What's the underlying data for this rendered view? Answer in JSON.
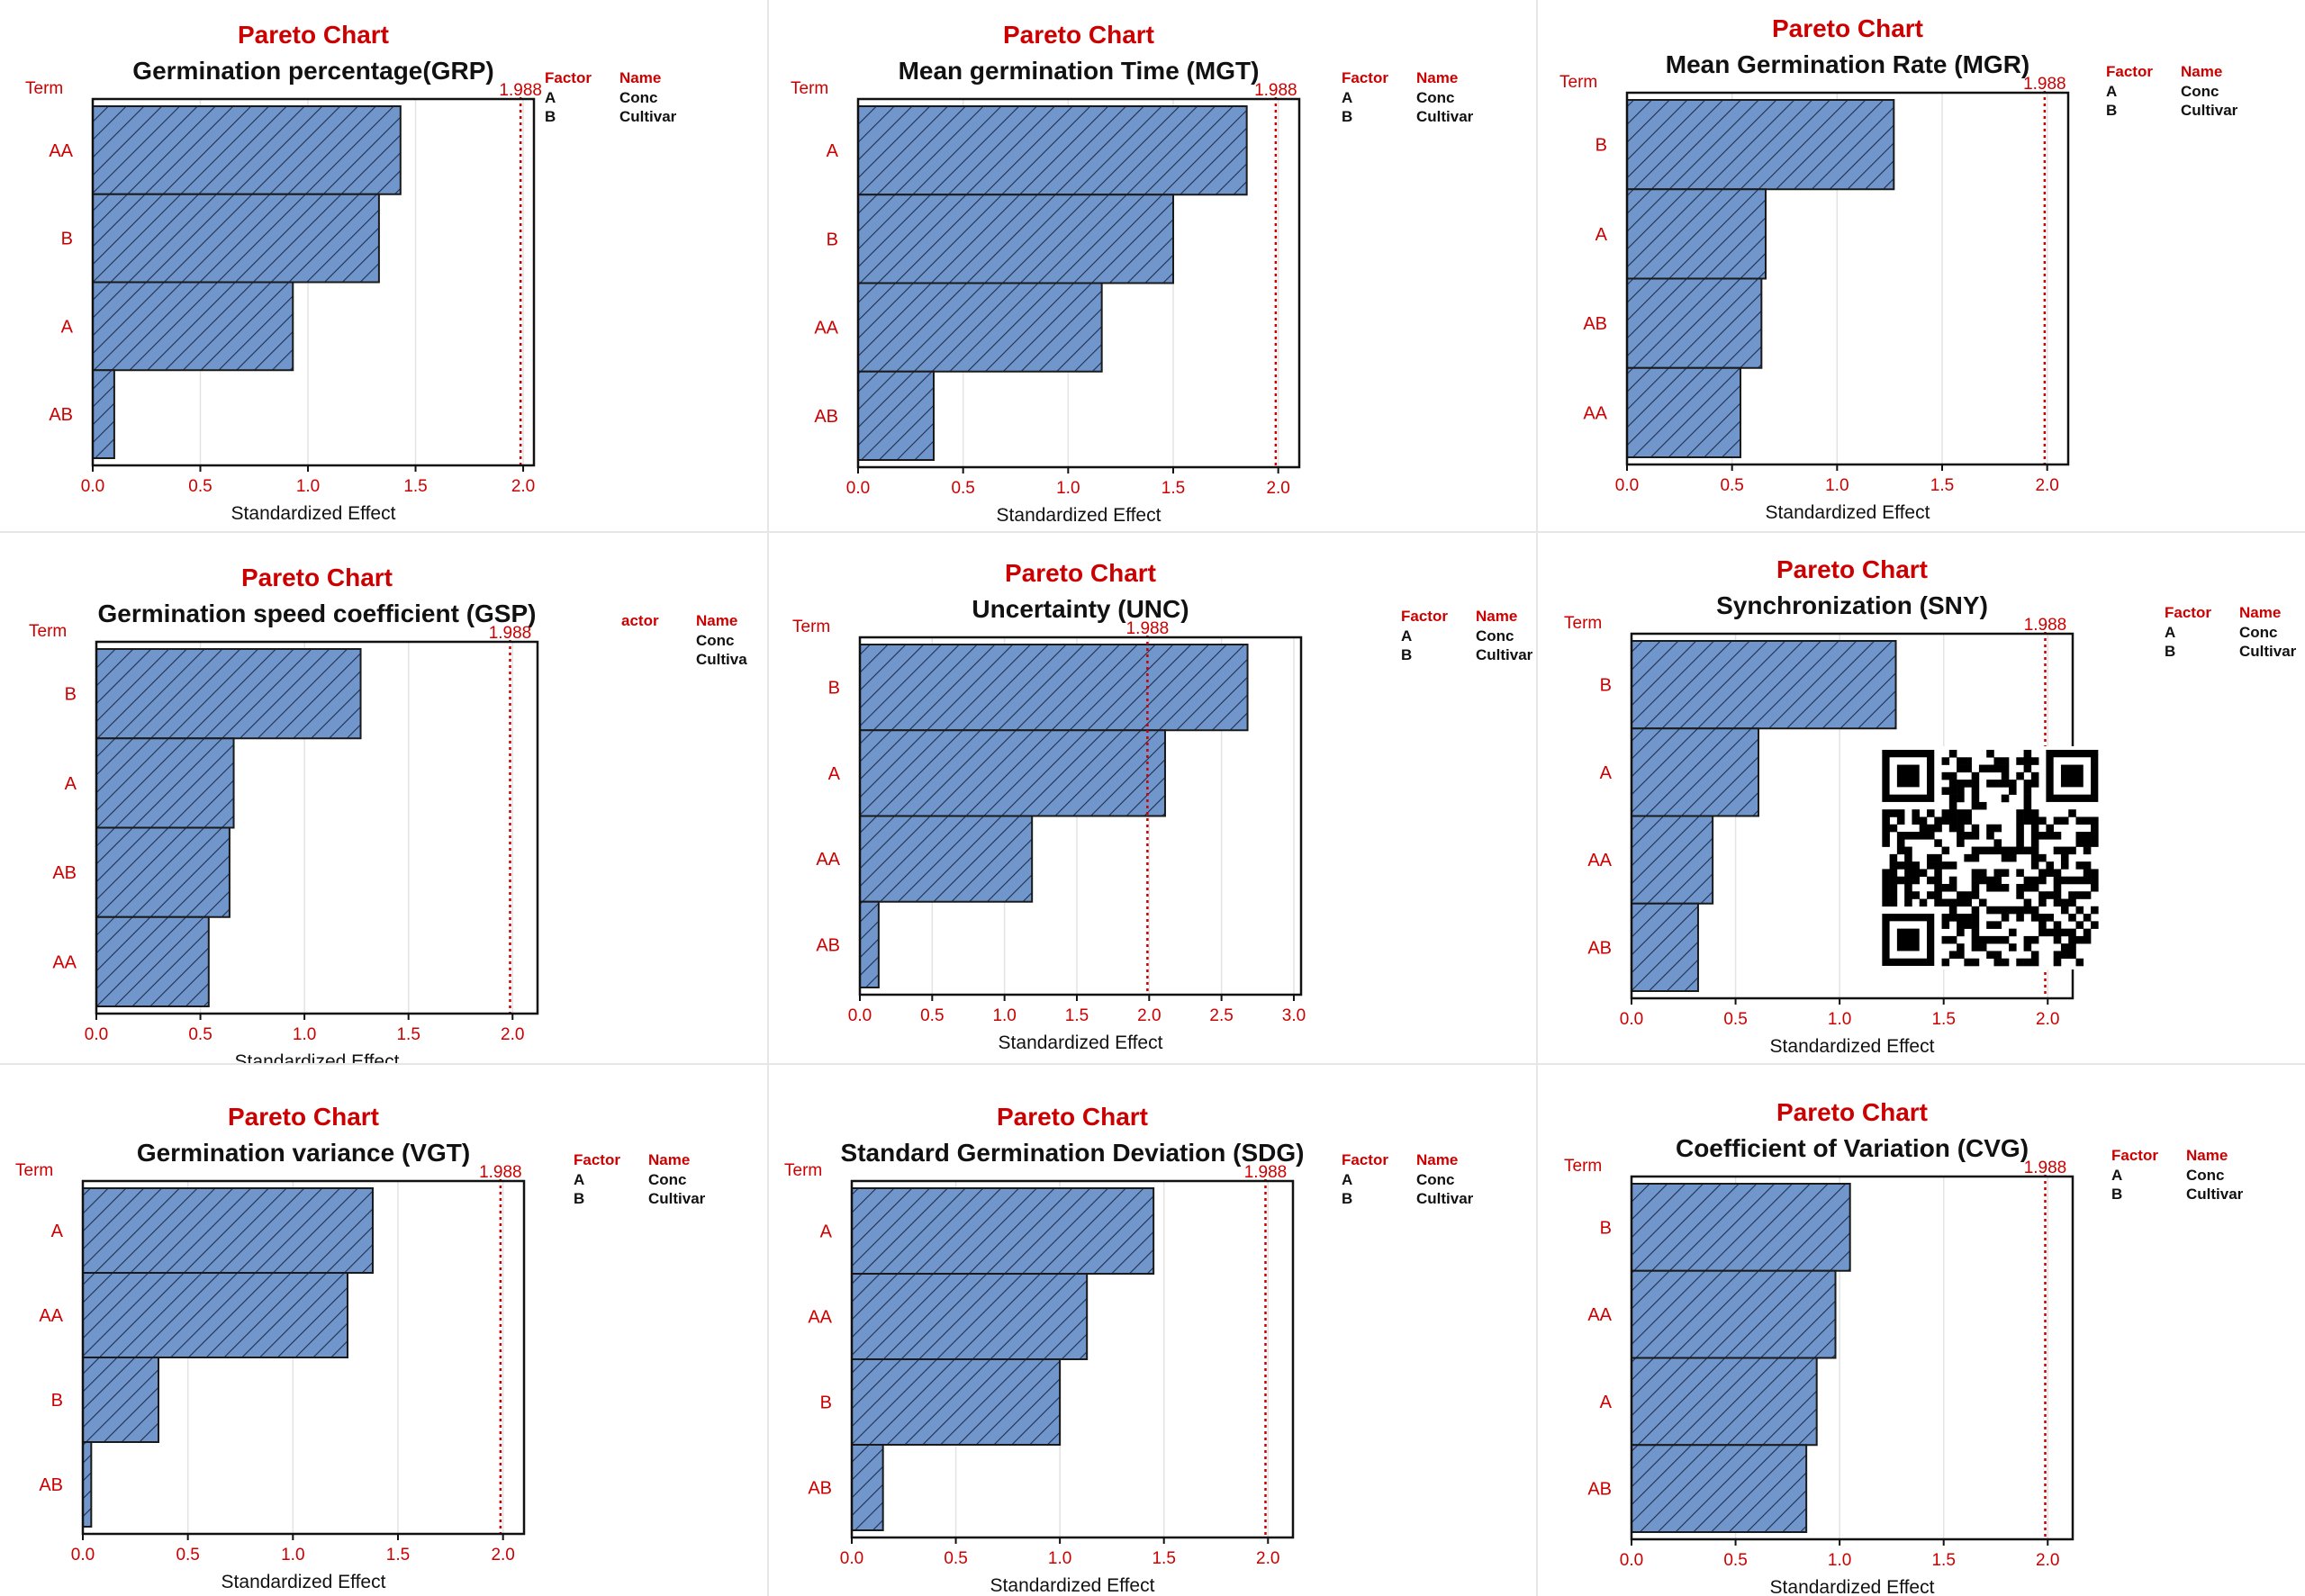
{
  "chart_data": [
    {
      "type": "bar",
      "orientation": "horizontal",
      "heading": "Pareto Chart",
      "title": "Germination percentage(GRP)",
      "ylabel": "Term",
      "xlabel": "Standardized Effect",
      "reference_line": {
        "value": 1.988,
        "label": "1.988"
      },
      "xlim": [
        0,
        2.05
      ],
      "xticks": [
        "0.0",
        "0.5",
        "1.0",
        "1.5",
        "2.0"
      ],
      "categories": [
        "AA",
        "B",
        "A",
        "AB"
      ],
      "values": [
        1.43,
        1.33,
        0.93,
        0.1
      ],
      "legend": {
        "headers": [
          "Factor",
          "Name"
        ],
        "rows": [
          [
            "A",
            "Conc"
          ],
          [
            "B",
            "Cultivar"
          ]
        ]
      }
    },
    {
      "type": "bar",
      "orientation": "horizontal",
      "heading": "Pareto Chart",
      "title": "Mean germination Time (MGT)",
      "ylabel": "Term",
      "xlabel": "Standardized Effect",
      "reference_line": {
        "value": 1.988,
        "label": "1.988"
      },
      "xlim": [
        0,
        2.1
      ],
      "xticks": [
        "0.0",
        "0.5",
        "1.0",
        "1.5",
        "2.0"
      ],
      "categories": [
        "A",
        "B",
        "AA",
        "AB"
      ],
      "values": [
        1.85,
        1.5,
        1.16,
        0.36
      ],
      "legend": {
        "headers": [
          "Factor",
          "Name"
        ],
        "rows": [
          [
            "A",
            "Conc"
          ],
          [
            "B",
            "Cultivar"
          ]
        ]
      }
    },
    {
      "type": "bar",
      "orientation": "horizontal",
      "heading": "Pareto Chart",
      "title": "Mean Germination Rate (MGR)",
      "ylabel": "Term",
      "xlabel": "Standardized Effect",
      "reference_line": {
        "value": 1.988,
        "label": "1.988"
      },
      "xlim": [
        0,
        2.1
      ],
      "xticks": [
        "0.0",
        "0.5",
        "1.0",
        "1.5",
        "2.0"
      ],
      "categories": [
        "B",
        "A",
        "AB",
        "AA"
      ],
      "values": [
        1.27,
        0.66,
        0.64,
        0.54
      ],
      "legend": {
        "headers": [
          "Factor",
          "Name"
        ],
        "rows": [
          [
            "A",
            "Conc"
          ],
          [
            "B",
            "Cultivar"
          ]
        ]
      }
    },
    {
      "type": "bar",
      "orientation": "horizontal",
      "heading": "Pareto Chart",
      "title": "Germination speed coefficient (GSP)",
      "ylabel": "Term",
      "xlabel": "Standardized Effect",
      "reference_line": {
        "value": 1.988,
        "label": "1.988"
      },
      "xlim": [
        0,
        2.12
      ],
      "xticks": [
        "0.0",
        "0.5",
        "1.0",
        "1.5",
        "2.0"
      ],
      "categories": [
        "B",
        "A",
        "AB",
        "AA"
      ],
      "values": [
        1.27,
        0.66,
        0.64,
        0.54
      ],
      "legend": {
        "headers": [
          "actor",
          "Name"
        ],
        "rows": [
          [
            "",
            "Conc"
          ],
          [
            "",
            "Cultiva"
          ]
        ]
      }
    },
    {
      "type": "bar",
      "orientation": "horizontal",
      "heading": "Pareto Chart",
      "title": "Uncertainty (UNC)",
      "ylabel": "Term",
      "xlabel": "Standardized Effect",
      "reference_line": {
        "value": 1.988,
        "label": "1.988"
      },
      "xlim": [
        0,
        3.05
      ],
      "xticks": [
        "0.0",
        "0.5",
        "1.0",
        "1.5",
        "2.0",
        "2.5",
        "3.0"
      ],
      "categories": [
        "B",
        "A",
        "AA",
        "AB"
      ],
      "values": [
        2.68,
        2.11,
        1.19,
        0.13
      ],
      "legend": {
        "headers": [
          "Factor",
          "Name"
        ],
        "rows": [
          [
            "A",
            "Conc"
          ],
          [
            "B",
            "Cultivar"
          ]
        ]
      }
    },
    {
      "type": "bar",
      "orientation": "horizontal",
      "heading": "Pareto Chart",
      "title": "Synchronization (SNY)",
      "ylabel": "Term",
      "xlabel": "Standardized Effect",
      "reference_line": {
        "value": 1.988,
        "label": "1.988"
      },
      "xlim": [
        0,
        2.12
      ],
      "xticks": [
        "0.0",
        "0.5",
        "1.0",
        "1.5",
        "2.0"
      ],
      "categories": [
        "B",
        "A",
        "AA",
        "AB"
      ],
      "values": [
        1.27,
        0.61,
        0.39,
        0.32
      ],
      "legend": {
        "headers": [
          "Factor",
          "Name"
        ],
        "rows": [
          [
            "A",
            "Conc"
          ],
          [
            "B",
            "Cultivar"
          ]
        ]
      }
    },
    {
      "type": "bar",
      "orientation": "horizontal",
      "heading": "Pareto Chart",
      "title": "Germination variance (VGT)",
      "ylabel": "Term",
      "xlabel": "Standardized Effect",
      "reference_line": {
        "value": 1.988,
        "label": "1.988"
      },
      "xlim": [
        0,
        2.1
      ],
      "xticks": [
        "0.0",
        "0.5",
        "1.0",
        "1.5",
        "2.0"
      ],
      "categories": [
        "A",
        "AA",
        "B",
        "AB"
      ],
      "values": [
        1.38,
        1.26,
        0.36,
        0.04
      ],
      "legend": {
        "headers": [
          "Factor",
          "Name"
        ],
        "rows": [
          [
            "A",
            "Conc"
          ],
          [
            "B",
            "Cultivar"
          ]
        ]
      }
    },
    {
      "type": "bar",
      "orientation": "horizontal",
      "heading": "Pareto Chart",
      "title": "Standard Germination Deviation (SDG)",
      "ylabel": "Term",
      "xlabel": "Standardized Effect",
      "reference_line": {
        "value": 1.988,
        "label": "1.988"
      },
      "xlim": [
        0,
        2.12
      ],
      "xticks": [
        "0.0",
        "0.5",
        "1.0",
        "1.5",
        "2.0"
      ],
      "categories": [
        "A",
        "AA",
        "B",
        "AB"
      ],
      "values": [
        1.45,
        1.13,
        1.0,
        0.15
      ],
      "legend": {
        "headers": [
          "Factor",
          "Name"
        ],
        "rows": [
          [
            "A",
            "Conc"
          ],
          [
            "B",
            "Cultivar"
          ]
        ]
      }
    },
    {
      "type": "bar",
      "orientation": "horizontal",
      "heading": "Pareto Chart",
      "title": "Coefficient of Variation (CVG)",
      "ylabel": "Term",
      "xlabel": "Standardized Effect",
      "reference_line": {
        "value": 1.988,
        "label": "1.988"
      },
      "xlim": [
        0,
        2.12
      ],
      "xticks": [
        "0.0",
        "0.5",
        "1.0",
        "1.5",
        "2.0"
      ],
      "categories": [
        "B",
        "AA",
        "A",
        "AB"
      ],
      "values": [
        1.05,
        0.98,
        0.89,
        0.84
      ],
      "legend": {
        "headers": [
          "Factor",
          "Name"
        ],
        "rows": [
          [
            "A",
            "Conc"
          ],
          [
            "B",
            "Cultivar"
          ]
        ]
      }
    }
  ],
  "colors": {
    "bar_fill": "#7096cc",
    "bar_stroke": "#1a1a1a",
    "hatch": "#1f2f4f",
    "accent_red": "#cc0000",
    "grid": "#e3e3e3"
  },
  "icons": {
    "qr": "qr-code-icon"
  }
}
